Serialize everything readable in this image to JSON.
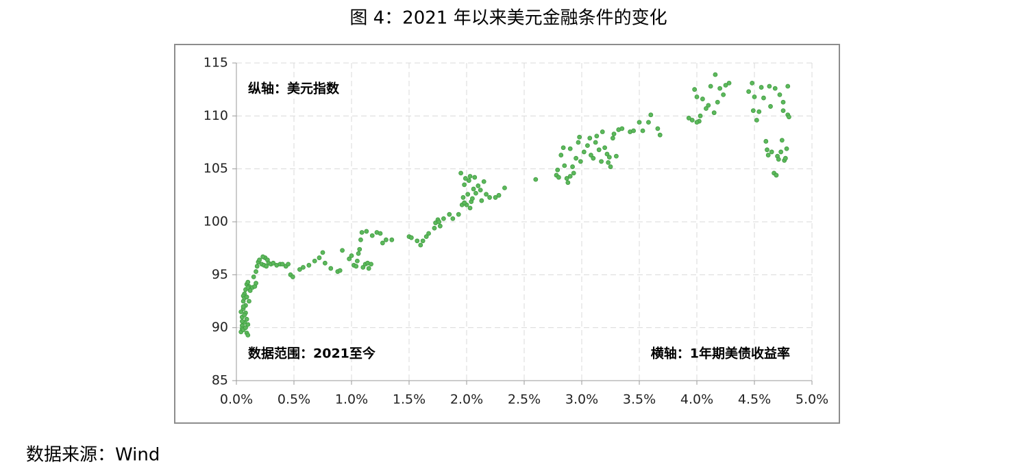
{
  "chart_data": {
    "type": "scatter",
    "title": "图 4：2021 年以来美元金融条件的变化",
    "annotations": [
      "纵轴：美元指数",
      "数据范围：2021至今",
      "横轴：1年期美债收益率"
    ],
    "source": "数据来源：Wind",
    "color": "#5cb85c",
    "grid": true,
    "xlim": [
      0,
      5
    ],
    "ylim": [
      85,
      115
    ],
    "xticks": [
      {
        "value": 0,
        "label": "0.0%"
      },
      {
        "value": 0.5,
        "label": "0.5%"
      },
      {
        "value": 1,
        "label": "1.0%"
      },
      {
        "value": 1.5,
        "label": "1.5%"
      },
      {
        "value": 2,
        "label": "2.0%"
      },
      {
        "value": 2.5,
        "label": "2.5%"
      },
      {
        "value": 3,
        "label": "3.0%"
      },
      {
        "value": 3.5,
        "label": "3.5%"
      },
      {
        "value": 4,
        "label": "4.0%"
      },
      {
        "value": 4.5,
        "label": "4.5%"
      },
      {
        "value": 5,
        "label": "5.0%"
      }
    ],
    "yticks": [
      85,
      90,
      95,
      100,
      105,
      110,
      115
    ],
    "x": [
      0.04,
      0.05,
      0.05,
      0.06,
      0.06,
      0.07,
      0.05,
      0.07,
      0.08,
      0.08,
      0.06,
      0.09,
      0.09,
      0.1,
      0.1,
      0.07,
      0.08,
      0.09,
      0.1,
      0.11,
      0.12,
      0.05,
      0.04,
      0.06,
      0.08,
      0.07,
      0.1,
      0.11,
      0.09,
      0.06,
      0.14,
      0.16,
      0.15,
      0.17,
      0.18,
      0.19,
      0.2,
      0.22,
      0.24,
      0.25,
      0.27,
      0.28,
      0.3,
      0.32,
      0.35,
      0.38,
      0.4,
      0.43,
      0.45,
      0.47,
      0.49,
      0.17,
      0.23,
      0.26,
      0.55,
      0.58,
      0.63,
      0.68,
      0.72,
      0.75,
      0.77,
      0.82,
      0.88,
      0.9,
      0.92,
      0.98,
      1.0,
      1.02,
      1.04,
      1.05,
      1.06,
      1.07,
      1.08,
      1.09,
      1.1,
      1.12,
      1.14,
      1.15,
      1.17,
      1.13,
      1.18,
      1.22,
      1.25,
      1.27,
      1.3,
      1.35,
      1.5,
      1.52,
      1.57,
      1.6,
      1.62,
      1.65,
      1.67,
      1.72,
      1.73,
      1.75,
      1.77,
      1.8,
      1.85,
      1.88,
      1.76,
      1.93,
      1.95,
      1.96,
      1.97,
      1.98,
      1.99,
      2.0,
      2.01,
      2.02,
      2.03,
      2.04,
      2.05,
      2.06,
      2.07,
      2.08,
      2.1,
      2.12,
      2.13,
      2.15,
      2.17,
      2.2,
      2.25,
      2.28,
      2.33,
      1.98,
      2.03,
      2.6,
      2.78,
      2.79,
      2.8,
      2.82,
      2.84,
      2.85,
      2.87,
      2.88,
      2.9,
      2.9,
      2.92,
      2.93,
      2.95,
      2.97,
      2.98,
      2.99,
      3.02,
      3.05,
      3.07,
      3.08,
      3.1,
      3.12,
      3.13,
      3.15,
      3.17,
      3.18,
      3.2,
      3.22,
      3.24,
      3.25,
      3.27,
      3.28,
      3.3,
      3.32,
      3.35,
      3.23,
      3.42,
      3.45,
      3.5,
      3.53,
      3.58,
      3.6,
      3.66,
      3.68,
      3.93,
      3.96,
      3.98,
      4.0,
      4.02,
      4.03,
      4.05,
      4.08,
      4.1,
      4.12,
      4.15,
      4.16,
      4.18,
      4.2,
      4.23,
      4.25,
      4.28,
      4.0,
      4.45,
      4.48,
      4.49,
      4.5,
      4.52,
      4.54,
      4.56,
      4.58,
      4.6,
      4.61,
      4.62,
      4.63,
      4.64,
      4.65,
      4.67,
      4.69,
      4.68,
      4.7,
      4.71,
      4.73,
      4.74,
      4.75,
      4.75,
      4.76,
      4.77,
      4.78,
      4.79,
      4.79,
      4.8,
      4.72
    ],
    "values": [
      89.6,
      90.2,
      91.0,
      91.8,
      92.5,
      93.2,
      89.9,
      90.5,
      91.4,
      92.1,
      93.0,
      89.5,
      90.8,
      89.3,
      90.3,
      92.8,
      93.6,
      94.1,
      94.3,
      93.9,
      93.5,
      90.6,
      91.5,
      89.8,
      90.0,
      91.2,
      93.8,
      92.5,
      92.9,
      92.0,
      93.8,
      93.9,
      94.8,
      95.3,
      95.8,
      96.2,
      96.4,
      96.0,
      95.9,
      96.6,
      96.4,
      96.1,
      96.0,
      96.1,
      95.9,
      96.0,
      96.0,
      95.8,
      96.0,
      95.0,
      94.8,
      94.2,
      96.7,
      95.8,
      95.5,
      95.7,
      95.9,
      96.3,
      96.6,
      97.1,
      96.1,
      95.6,
      95.3,
      95.4,
      97.3,
      96.5,
      96.8,
      95.9,
      95.8,
      96.3,
      97.0,
      97.4,
      98.3,
      99.0,
      95.7,
      96.0,
      96.1,
      95.6,
      96.0,
      99.1,
      98.7,
      99.0,
      98.9,
      98.0,
      98.3,
      98.3,
      98.6,
      98.5,
      98.2,
      97.8,
      98.2,
      98.6,
      98.9,
      99.4,
      99.9,
      100.2,
      99.6,
      100.3,
      100.7,
      100.3,
      100.0,
      100.7,
      104.6,
      101.6,
      102.3,
      103.5,
      104.1,
      101.6,
      102.6,
      103.9,
      104.3,
      101.9,
      102.2,
      103.1,
      104.2,
      102.7,
      103.4,
      103.0,
      102.0,
      103.8,
      102.6,
      102.3,
      102.3,
      102.5,
      103.2,
      101.8,
      101.3,
      104.0,
      104.4,
      104.9,
      104.2,
      106.3,
      107.0,
      105.3,
      104.1,
      103.7,
      104.3,
      106.9,
      105.2,
      104.6,
      106.0,
      107.5,
      108.0,
      105.7,
      106.6,
      107.2,
      107.9,
      106.3,
      106.0,
      107.5,
      108.1,
      106.8,
      105.7,
      108.5,
      107.0,
      106.4,
      106.1,
      105.2,
      107.9,
      108.3,
      106.2,
      108.7,
      108.8,
      105.6,
      108.5,
      108.6,
      109.4,
      108.6,
      109.4,
      110.1,
      108.8,
      108.2,
      109.8,
      109.6,
      112.5,
      111.8,
      109.5,
      110.0,
      111.6,
      110.7,
      111.0,
      112.8,
      110.3,
      113.9,
      111.3,
      112.6,
      112.0,
      112.9,
      113.1,
      109.4,
      112.3,
      113.1,
      110.5,
      111.8,
      109.6,
      110.4,
      112.7,
      111.7,
      107.6,
      106.8,
      106.3,
      112.8,
      110.9,
      106.6,
      104.6,
      104.4,
      112.6,
      106.2,
      105.9,
      106.6,
      107.7,
      111.3,
      110.5,
      105.8,
      106.0,
      106.9,
      112.8,
      110.1,
      109.9,
      112.0
    ]
  }
}
